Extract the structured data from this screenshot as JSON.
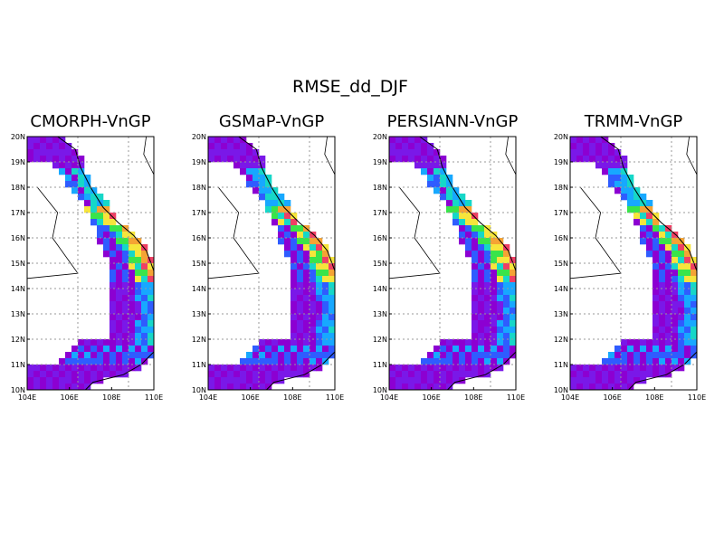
{
  "figure": {
    "title": "RMSE_dd_DJF"
  },
  "axes": {
    "lat_labels": [
      "20N",
      "19N",
      "18N",
      "17N",
      "16N",
      "15N",
      "14N",
      "13N",
      "12N",
      "11N",
      "10N"
    ],
    "lon_labels": [
      "104E",
      "106E",
      "108E",
      "110E"
    ]
  },
  "panels": [
    {
      "title": "CMORPH-VnGP"
    },
    {
      "title": "GSMaP-VnGP"
    },
    {
      "title": "PERSIANN-VnGP"
    },
    {
      "title": "TRMM-VnGP"
    }
  ],
  "colors": {
    "purple": "#7a18e8",
    "violet": "#8c00d2",
    "blue": "#2f5cff",
    "light_blue": "#17a8ff",
    "cyan": "#16d7c8",
    "green": "#39e44a",
    "yellow": "#f6e53b",
    "orange": "#f5a334",
    "red": "#ef3f64",
    "grid": "#999999",
    "coast": "#000000"
  }
}
